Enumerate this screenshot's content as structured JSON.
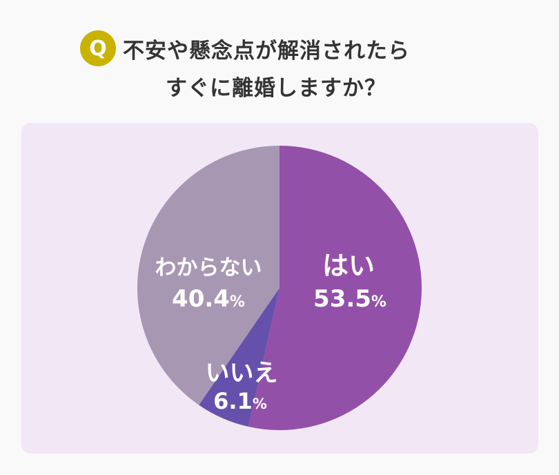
{
  "header": {
    "badge": "Q",
    "title_line1": "不安や懸念点が解消されたら",
    "title_line2": "すぐに離婚しますか？"
  },
  "chart_data": {
    "type": "pie",
    "slices": [
      {
        "label": "はい",
        "value": 53.5,
        "display": "53.5",
        "unit": "%",
        "color": "#9350a8"
      },
      {
        "label": "いいえ",
        "value": 6.1,
        "display": "6.1",
        "unit": "%",
        "color": "#6551ab"
      },
      {
        "label": "わからない",
        "value": 40.4,
        "display": "40.4",
        "unit": "%",
        "color": "#a897b3"
      }
    ],
    "start": "top",
    "direction": "clockwise"
  }
}
